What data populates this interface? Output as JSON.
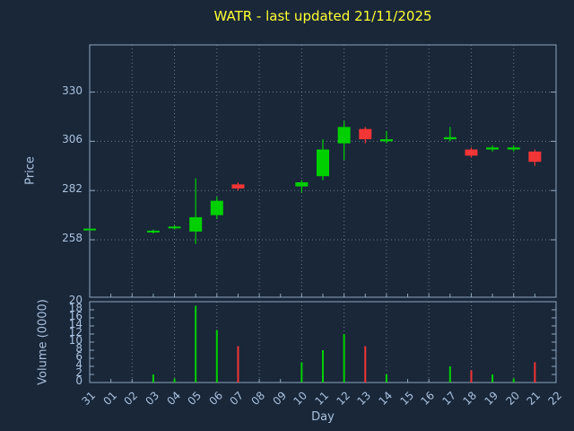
{
  "colors": {
    "background": "#192739",
    "title": "#ffff33",
    "axis_text": "#aac1dd",
    "frame": "#8fa6bd",
    "grid": "#b9c8d6",
    "up": "#00d000",
    "down": "#f23535"
  },
  "chart_data": {
    "type": "candlestick",
    "title": "WATR - last updated 21/11/2025",
    "xlabel": "Day",
    "ylabel_price": "Price",
    "ylabel_volume": "Volume (0000)",
    "x_categories": [
      "31",
      "01",
      "02",
      "03",
      "04",
      "05",
      "06",
      "07",
      "08",
      "09",
      "10",
      "11",
      "12",
      "13",
      "14",
      "15",
      "16",
      "17",
      "18",
      "19",
      "20",
      "21",
      "22"
    ],
    "price_ticks": [
      330,
      306,
      282,
      258
    ],
    "price_axis_range": [
      230,
      353
    ],
    "volume_ticks": [
      20,
      18,
      16,
      14,
      12,
      10,
      8,
      6,
      4,
      2,
      0
    ],
    "volume_axis_range": [
      0,
      20
    ],
    "grid": "dotted",
    "candles": [
      {
        "day": "31",
        "open": 263,
        "high": 263,
        "low": 263,
        "close": 263,
        "volume": 0,
        "direction": "up"
      },
      {
        "day": "03",
        "open": 262,
        "high": 263,
        "low": 261,
        "close": 262,
        "volume": 2,
        "direction": "up"
      },
      {
        "day": "04",
        "open": 264,
        "high": 265,
        "low": 263,
        "close": 264,
        "volume": 1,
        "direction": "up"
      },
      {
        "day": "05",
        "open": 262,
        "high": 288,
        "low": 256,
        "close": 269,
        "volume": 19,
        "direction": "up"
      },
      {
        "day": "06",
        "open": 270,
        "high": 279,
        "low": 268,
        "close": 277,
        "volume": 13,
        "direction": "up"
      },
      {
        "day": "07",
        "open": 285,
        "high": 286,
        "low": 282,
        "close": 283,
        "volume": 9,
        "direction": "down"
      },
      {
        "day": "10",
        "open": 284,
        "high": 287,
        "low": 281,
        "close": 286,
        "volume": 5,
        "direction": "up"
      },
      {
        "day": "11",
        "open": 289,
        "high": 307,
        "low": 287,
        "close": 302,
        "volume": 8,
        "direction": "up"
      },
      {
        "day": "12",
        "open": 305,
        "high": 316,
        "low": 297,
        "close": 313,
        "volume": 12,
        "direction": "up"
      },
      {
        "day": "13",
        "open": 312,
        "high": 313,
        "low": 305,
        "close": 307,
        "volume": 9,
        "direction": "down"
      },
      {
        "day": "14",
        "open": 306,
        "high": 311,
        "low": 305,
        "close": 307,
        "volume": 2,
        "direction": "up"
      },
      {
        "day": "17",
        "open": 307,
        "high": 313,
        "low": 306,
        "close": 308,
        "volume": 4,
        "direction": "up"
      },
      {
        "day": "18",
        "open": 302,
        "high": 303,
        "low": 298,
        "close": 299,
        "volume": 3,
        "direction": "down"
      },
      {
        "day": "19",
        "open": 302,
        "high": 304,
        "low": 301,
        "close": 303,
        "volume": 2,
        "direction": "up"
      },
      {
        "day": "20",
        "open": 302,
        "high": 304,
        "low": 301,
        "close": 303,
        "volume": 1,
        "direction": "up"
      },
      {
        "day": "21",
        "open": 301,
        "high": 302,
        "low": 294,
        "close": 296,
        "volume": 5,
        "direction": "down"
      }
    ]
  }
}
